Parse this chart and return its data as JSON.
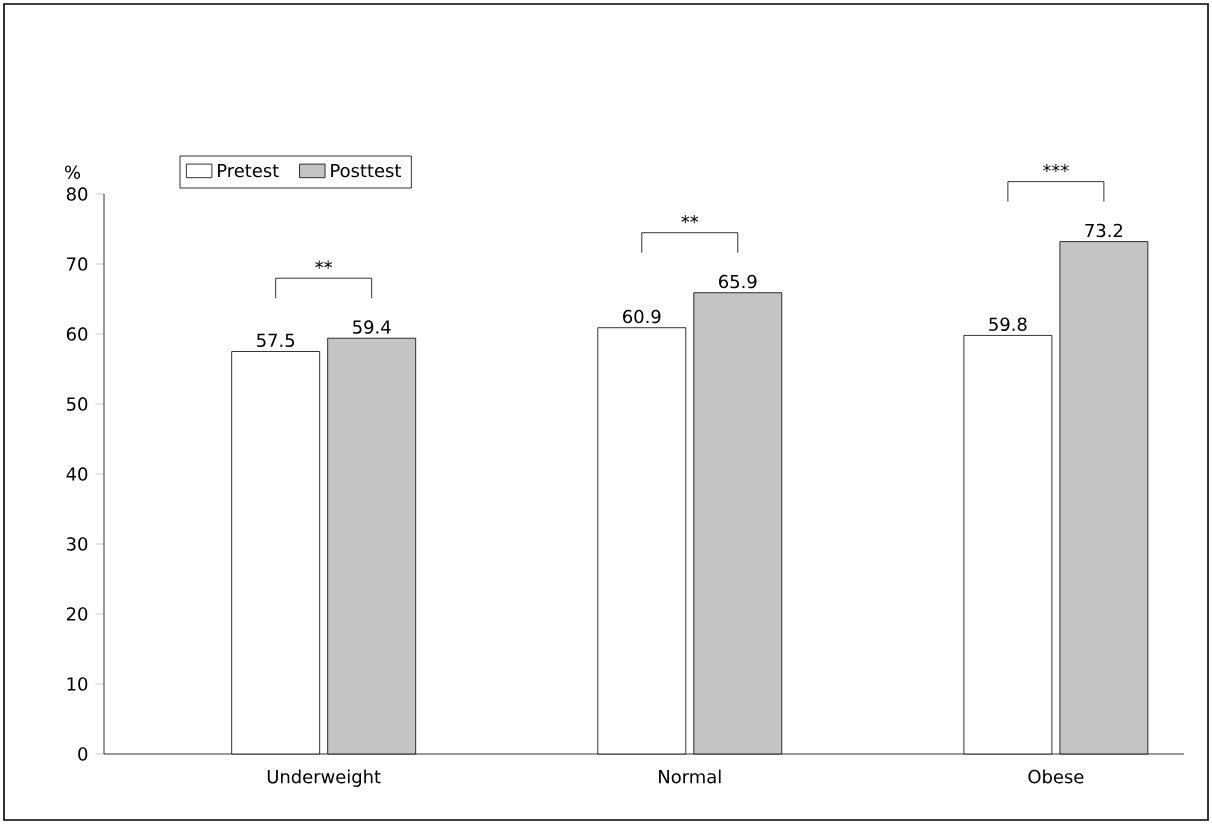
{
  "chart_data": {
    "type": "bar",
    "categories": [
      "Underweight",
      "Normal",
      "Obese"
    ],
    "series": [
      {
        "name": "Pretest",
        "color": "#ffffff",
        "values": [
          57.5,
          60.9,
          59.8
        ]
      },
      {
        "name": "Posttest",
        "color": "#c4c4c4",
        "values": [
          59.4,
          65.9,
          73.2
        ]
      }
    ],
    "ylabel": "%",
    "ylim": [
      0,
      80
    ],
    "yticks": [
      0,
      10,
      20,
      30,
      40,
      50,
      60,
      70,
      80
    ],
    "data_labels": true,
    "legend": "top left",
    "annotations": [
      "**",
      "**",
      "***"
    ]
  }
}
